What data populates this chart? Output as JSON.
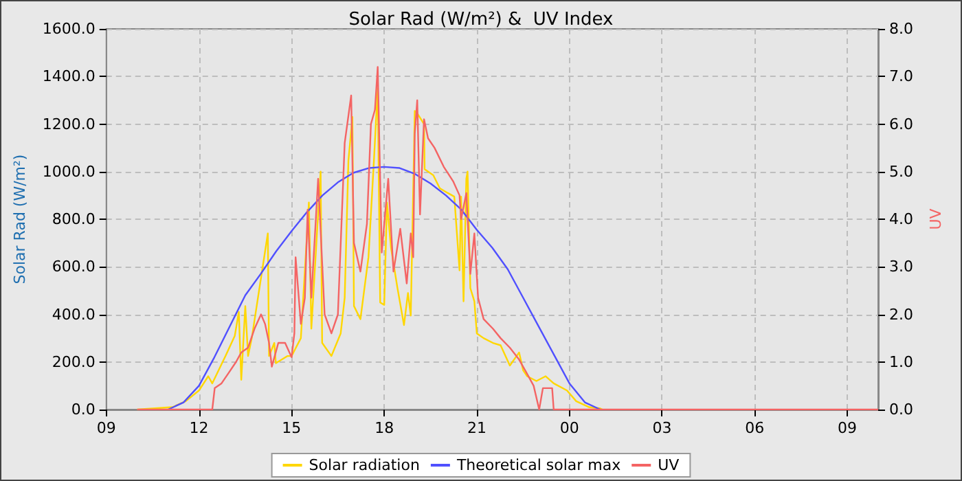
{
  "chart_data": {
    "type": "line",
    "title": "Solar Rad (W/m²) &  UV Index",
    "ylabel": "Solar Rad (W/m²)",
    "y2label": "UV",
    "xlim": [
      9,
      34
    ],
    "xticks": [
      {
        "value": 9,
        "label": "09"
      },
      {
        "value": 12,
        "label": "12"
      },
      {
        "value": 15,
        "label": "15"
      },
      {
        "value": 18,
        "label": "18"
      },
      {
        "value": 21,
        "label": "21"
      },
      {
        "value": 24,
        "label": "00"
      },
      {
        "value": 27,
        "label": "03"
      },
      {
        "value": 30,
        "label": "06"
      },
      {
        "value": 33,
        "label": "09"
      }
    ],
    "ylim": [
      0,
      1600
    ],
    "yticks": [
      {
        "value": 0,
        "label": "0.0"
      },
      {
        "value": 200,
        "label": "200.0"
      },
      {
        "value": 400,
        "label": "400.0"
      },
      {
        "value": 600,
        "label": "600.0"
      },
      {
        "value": 800,
        "label": "800.0"
      },
      {
        "value": 1000,
        "label": "1000.0"
      },
      {
        "value": 1200,
        "label": "1200.0"
      },
      {
        "value": 1400,
        "label": "1400.0"
      },
      {
        "value": 1600,
        "label": "1600.0"
      }
    ],
    "y2lim": [
      0,
      8
    ],
    "y2ticks": [
      {
        "value": 0,
        "label": "0.0"
      },
      {
        "value": 1,
        "label": "1.0"
      },
      {
        "value": 2,
        "label": "2.0"
      },
      {
        "value": 3,
        "label": "3.0"
      },
      {
        "value": 4,
        "label": "4.0"
      },
      {
        "value": 5,
        "label": "5.0"
      },
      {
        "value": 6,
        "label": "6.0"
      },
      {
        "value": 7,
        "label": "7.0"
      },
      {
        "value": 8,
        "label": "8.0"
      }
    ],
    "grid": true,
    "legend": "bottom",
    "marker": "none",
    "series": [
      {
        "name": "Solar radiation",
        "color": "#ffd700",
        "x": [
          10.0,
          11.14,
          11.57,
          12.0,
          12.3,
          12.43,
          12.86,
          13.16,
          13.29,
          13.37,
          13.5,
          13.59,
          13.71,
          14.23,
          14.27,
          14.44,
          14.49,
          14.87,
          15.0,
          15.3,
          15.56,
          15.64,
          15.94,
          15.99,
          16.29,
          16.59,
          16.72,
          16.84,
          16.97,
          17.02,
          17.23,
          17.49,
          17.66,
          17.79,
          17.87,
          18.0,
          18.09,
          18.22,
          18.43,
          18.64,
          18.77,
          18.86,
          18.99,
          19.07,
          19.29,
          19.31,
          19.59,
          19.8,
          20.06,
          20.27,
          20.44,
          20.49,
          20.57,
          20.66,
          20.7,
          20.79,
          20.92,
          21.0,
          21.22,
          21.52,
          21.77,
          22.07,
          22.37,
          22.5,
          22.63,
          22.93,
          23.23,
          23.49,
          23.92,
          24.22,
          24.64,
          24.99,
          25.07
        ],
        "values": [
          0,
          10,
          35,
          80,
          140,
          110,
          225,
          310,
          410,
          125,
          435,
          225,
          300,
          740,
          225,
          280,
          195,
          225,
          225,
          300,
          870,
          340,
          1000,
          280,
          225,
          320,
          470,
          1045,
          1230,
          435,
          380,
          640,
          1030,
          1350,
          450,
          440,
          870,
          680,
          510,
          355,
          490,
          395,
          1255,
          1245,
          1200,
          1010,
          985,
          930,
          910,
          895,
          585,
          895,
          455,
          970,
          1000,
          510,
          455,
          320,
          300,
          280,
          270,
          185,
          240,
          165,
          140,
          120,
          140,
          110,
          80,
          35,
          10,
          5,
          0
        ]
      },
      {
        "name": "Theoretical solar max",
        "color": "#5050ff",
        "x": [
          11,
          11.5,
          12,
          12.5,
          13,
          13.5,
          14,
          14.5,
          15,
          15.5,
          16,
          16.5,
          17,
          17.5,
          18,
          18.5,
          19,
          19.5,
          20,
          20.5,
          21,
          21.5,
          22,
          22.5,
          23,
          23.5,
          24,
          24.5,
          25
        ],
        "values": [
          0,
          30,
          100,
          220,
          350,
          480,
          570,
          665,
          750,
          830,
          900,
          955,
          995,
          1015,
          1020,
          1015,
          990,
          950,
          900,
          840,
          755,
          680,
          590,
          470,
          350,
          230,
          110,
          30,
          0
        ]
      },
      {
        "name": "UV",
        "color": "#f46464",
        "axis": "y2",
        "x": [
          10.0,
          12.43,
          12.51,
          12.73,
          12.94,
          13.2,
          13.37,
          13.59,
          13.8,
          14.01,
          14.14,
          14.27,
          14.36,
          14.57,
          14.79,
          15.0,
          15.09,
          15.13,
          15.3,
          15.43,
          15.52,
          15.64,
          15.86,
          16.07,
          16.29,
          16.5,
          16.72,
          16.93,
          17.02,
          17.23,
          17.44,
          17.57,
          17.7,
          17.79,
          17.92,
          18.13,
          18.3,
          18.52,
          18.73,
          18.86,
          18.94,
          18.99,
          19.07,
          19.16,
          19.29,
          19.42,
          19.63,
          19.93,
          20.23,
          20.44,
          20.49,
          20.66,
          20.79,
          20.92,
          21.04,
          21.22,
          21.52,
          21.77,
          22.07,
          22.37,
          22.63,
          22.84,
          23.02,
          23.14,
          23.44,
          23.49,
          34.0
        ],
        "values": [
          0,
          0,
          0.45,
          0.55,
          0.75,
          1.0,
          1.2,
          1.3,
          1.7,
          2.0,
          1.8,
          1.4,
          0.9,
          1.4,
          1.4,
          1.1,
          1.6,
          3.2,
          1.8,
          2.35,
          4.2,
          2.35,
          4.85,
          2.0,
          1.6,
          2.0,
          5.6,
          6.6,
          3.5,
          2.9,
          3.9,
          6.0,
          6.3,
          7.2,
          3.3,
          4.85,
          2.9,
          3.8,
          2.65,
          3.7,
          3.2,
          5.8,
          6.5,
          4.1,
          6.1,
          5.7,
          5.5,
          5.1,
          4.8,
          4.5,
          4.0,
          4.55,
          2.85,
          3.7,
          2.35,
          1.9,
          1.7,
          1.5,
          1.3,
          1.05,
          0.75,
          0.5,
          0,
          0.45,
          0.45,
          0,
          0
        ]
      }
    ]
  }
}
